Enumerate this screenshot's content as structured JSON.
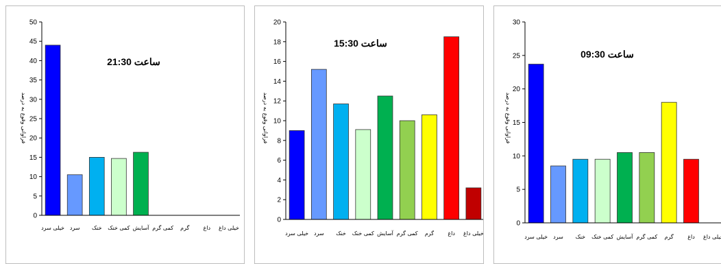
{
  "chart_data": [
    {
      "type": "bar",
      "title": "ساعت 21:30",
      "ylabel": "فراوانی وقوع به درصد",
      "ylim": [
        0,
        50
      ],
      "yticks": [
        0,
        5,
        10,
        15,
        20,
        25,
        30,
        35,
        40,
        45,
        50
      ],
      "categories": [
        "خیلی سرد",
        "سرد",
        "خنک",
        "کمی خنک",
        "آسایش",
        "کمی گرم",
        "گرم",
        "داغ",
        "خیلی داغ"
      ],
      "values": [
        44,
        10.5,
        15,
        14.7,
        16.3,
        0,
        0,
        0,
        0
      ],
      "colors": [
        "#0000ff",
        "#6699ff",
        "#00b0f0",
        "#ccffcc",
        "#00b050",
        "#92d050",
        "#ffff00",
        "#ff0000",
        "#c00000"
      ]
    },
    {
      "type": "bar",
      "title": "ساعت 15:30",
      "ylabel": "فراوانی وقوع به درصد",
      "ylim": [
        0,
        20
      ],
      "yticks": [
        0,
        2,
        4,
        6,
        8,
        10,
        12,
        14,
        16,
        18,
        20
      ],
      "categories": [
        "خیلی سرد",
        "سرد",
        "خنک",
        "کمی خنک",
        "آسایش",
        "کمی گرم",
        "گرم",
        "داغ",
        "خیلی داغ"
      ],
      "values": [
        9,
        15.2,
        11.7,
        9.1,
        12.5,
        10,
        10.6,
        18.5,
        3.2
      ],
      "colors": [
        "#0000ff",
        "#6699ff",
        "#00b0f0",
        "#ccffcc",
        "#00b050",
        "#92d050",
        "#ffff00",
        "#ff0000",
        "#c00000"
      ]
    },
    {
      "type": "bar",
      "title": "ساعت 09:30",
      "ylabel": "فراوانی وقوع به درصد",
      "ylim": [
        0,
        30
      ],
      "yticks": [
        0,
        5,
        10,
        15,
        20,
        25,
        30
      ],
      "categories": [
        "خیلی سرد",
        "سرد",
        "خنک",
        "کمی خنک",
        "آسایش",
        "کمی گرم",
        "گرم",
        "داغ",
        "خیلی داغ"
      ],
      "values": [
        23.7,
        8.5,
        9.5,
        9.5,
        10.5,
        10.5,
        18,
        9.5,
        0
      ],
      "colors": [
        "#0000ff",
        "#6699ff",
        "#00b0f0",
        "#ccffcc",
        "#00b050",
        "#92d050",
        "#ffff00",
        "#ff0000",
        "#c00000"
      ]
    }
  ]
}
